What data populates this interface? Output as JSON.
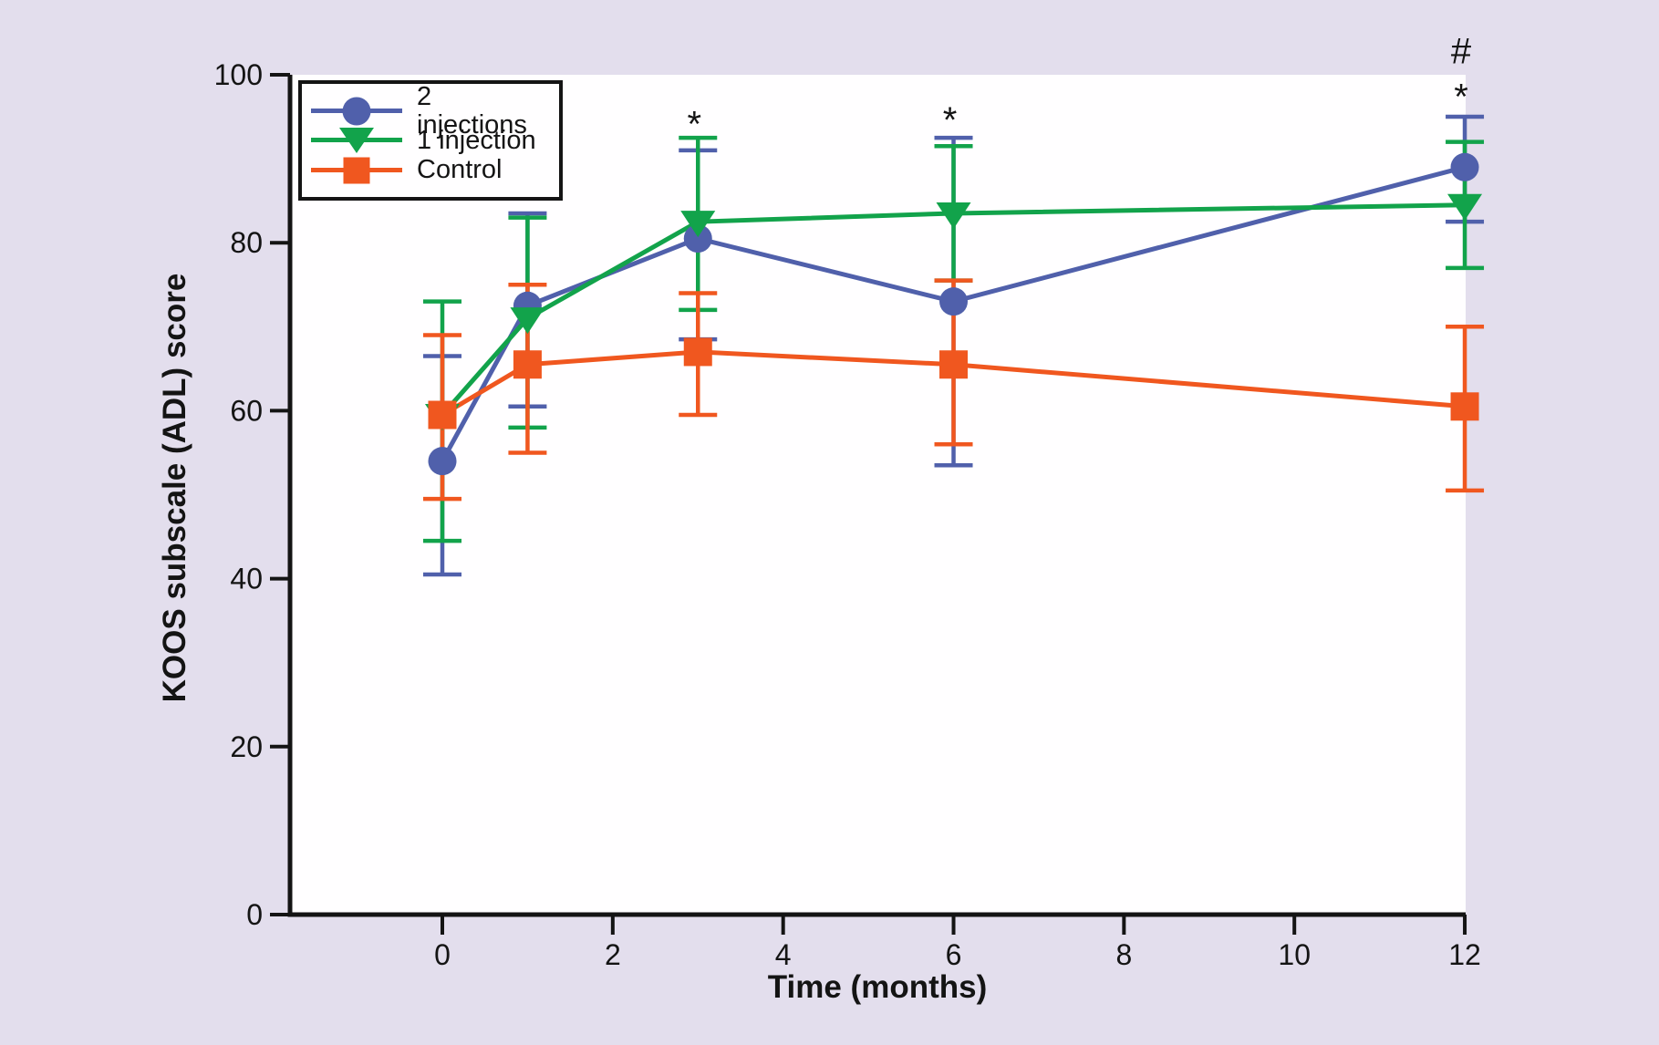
{
  "figure": {
    "background_color": "#e3deed",
    "plot_background_color": "#fffeff",
    "axis_color": "#141414"
  },
  "y_axis": {
    "title": "KOOS subscale (ADL) score",
    "ticks": [
      "0",
      "20",
      "40",
      "60",
      "80",
      "100"
    ],
    "min": 0,
    "max": 100
  },
  "x_axis": {
    "title": "Time (months)",
    "ticks": [
      "0",
      "2",
      "4",
      "6",
      "8",
      "10",
      "12"
    ],
    "min": 0,
    "max": 12
  },
  "legend": {
    "items": [
      {
        "label": "2 injections",
        "marker": "circle"
      },
      {
        "label": "1 injection",
        "marker": "triangle-down"
      },
      {
        "label": "Control",
        "marker": "square"
      }
    ]
  },
  "chart_data": {
    "type": "line",
    "x_label": "Time (months)",
    "y_label": "KOOS subscale (ADL) score",
    "x": [
      0,
      1,
      3,
      6,
      12
    ],
    "x_ticks": [
      0,
      2,
      4,
      6,
      8,
      10,
      12
    ],
    "y_ticks": [
      0,
      20,
      40,
      60,
      80,
      100
    ],
    "ylim": [
      0,
      100
    ],
    "xlim": [
      0,
      12
    ],
    "grid": false,
    "legend_position": "top-left",
    "error_bars": true,
    "series": [
      {
        "name": "2 injections",
        "color": "#5060ab",
        "marker": "circle",
        "values": [
          54,
          72.5,
          80.5,
          73,
          89
        ],
        "err_low": [
          40.5,
          60.5,
          68.5,
          53.5,
          82.5
        ],
        "err_high": [
          66.5,
          83.5,
          91,
          92.5,
          95
        ]
      },
      {
        "name": "1 injection",
        "color": "#12a34b",
        "marker": "triangle-down",
        "values": [
          59.5,
          71,
          82.5,
          83.5,
          84.5
        ],
        "err_low": [
          44.5,
          58,
          72,
          75.5,
          77
        ],
        "err_high": [
          73,
          83,
          92.5,
          91.5,
          92
        ]
      },
      {
        "name": "Control",
        "color": "#f0571f",
        "marker": "square",
        "values": [
          59.5,
          65.5,
          67,
          65.5,
          60.5
        ],
        "err_low": [
          49.5,
          55,
          59.5,
          56,
          50.5
        ],
        "err_high": [
          69,
          75,
          74,
          75.5,
          70
        ]
      }
    ],
    "annotations": [
      {
        "text": "*",
        "month": 3,
        "value": 94.5
      },
      {
        "text": "*",
        "month": 6,
        "value": 95
      },
      {
        "text": "*",
        "month": 12,
        "value": 97.8
      },
      {
        "text": "#",
        "month": 12,
        "value": 103.2
      }
    ]
  }
}
